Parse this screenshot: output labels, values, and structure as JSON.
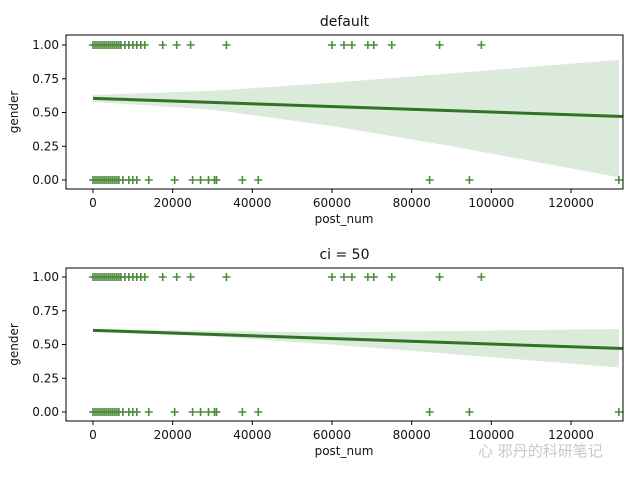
{
  "chart_data": [
    {
      "type": "scatter",
      "title": "default",
      "xlabel": "post_num",
      "ylabel": "gender",
      "xlim": [
        -6500,
        132000
      ],
      "ylim": [
        -0.07,
        1.07
      ],
      "xticks": [
        0,
        20000,
        40000,
        60000,
        80000,
        100000,
        120000
      ],
      "yticks": [
        "0.00",
        "0.25",
        "0.50",
        "0.75",
        "1.00"
      ],
      "marker": "+",
      "color": "#3a7a2a",
      "points_gender_1": [
        0,
        500,
        1000,
        1500,
        2000,
        2500,
        3000,
        3500,
        4000,
        4500,
        5000,
        5500,
        6000,
        6500,
        7000,
        8000,
        9000,
        10000,
        11000,
        12000,
        13000,
        17500,
        21000,
        24500,
        33500,
        60000,
        63000,
        65000,
        69000,
        70500,
        75000,
        87000,
        97500
      ],
      "points_gender_0": [
        0,
        500,
        1000,
        1500,
        2000,
        2500,
        3000,
        3500,
        4000,
        4500,
        5000,
        5500,
        6000,
        6500,
        7500,
        9000,
        10000,
        11000,
        14000,
        20500,
        25000,
        27000,
        29000,
        30500,
        31000,
        37500,
        41500,
        84500,
        94500,
        132000
      ],
      "regression": {
        "x": [
          0,
          132000
        ],
        "y": [
          0.605,
          0.47
        ]
      },
      "ci_band": {
        "x": [
          0,
          30000,
          60000,
          90000,
          132000
        ],
        "upper": [
          0.63,
          0.66,
          0.72,
          0.79,
          0.89
        ],
        "lower": [
          0.58,
          0.52,
          0.4,
          0.25,
          0.02
        ]
      }
    },
    {
      "type": "scatter",
      "title": "ci = 50",
      "xlabel": "post_num",
      "ylabel": "gender",
      "xlim": [
        -6500,
        132000
      ],
      "ylim": [
        -0.07,
        1.07
      ],
      "xticks": [
        0,
        20000,
        40000,
        60000,
        80000,
        100000,
        120000
      ],
      "yticks": [
        "0.00",
        "0.25",
        "0.50",
        "0.75",
        "1.00"
      ],
      "marker": "+",
      "color": "#3a7a2a",
      "points_gender_1": [
        0,
        500,
        1000,
        1500,
        2000,
        2500,
        3000,
        3500,
        4000,
        4500,
        5000,
        5500,
        6000,
        6500,
        7000,
        8000,
        9000,
        10000,
        11000,
        12000,
        13000,
        17500,
        21000,
        24500,
        33500,
        60000,
        63000,
        65000,
        69000,
        70500,
        75000,
        87000,
        97500
      ],
      "points_gender_0": [
        0,
        500,
        1000,
        1500,
        2000,
        2500,
        3000,
        3500,
        4000,
        4500,
        5000,
        5500,
        6000,
        6500,
        7500,
        9000,
        10000,
        11000,
        14000,
        20500,
        25000,
        27000,
        29000,
        30500,
        31000,
        37500,
        41500,
        84500,
        94500,
        132000
      ],
      "regression": {
        "x": [
          0,
          132000
        ],
        "y": [
          0.605,
          0.47
        ]
      },
      "ci_band": {
        "x": [
          0,
          30000,
          60000,
          90000,
          132000
        ],
        "upper": [
          0.615,
          0.6,
          0.59,
          0.6,
          0.615
        ],
        "lower": [
          0.595,
          0.56,
          0.5,
          0.43,
          0.33
        ]
      }
    }
  ],
  "watermark": "心 邪丹的科研笔记"
}
